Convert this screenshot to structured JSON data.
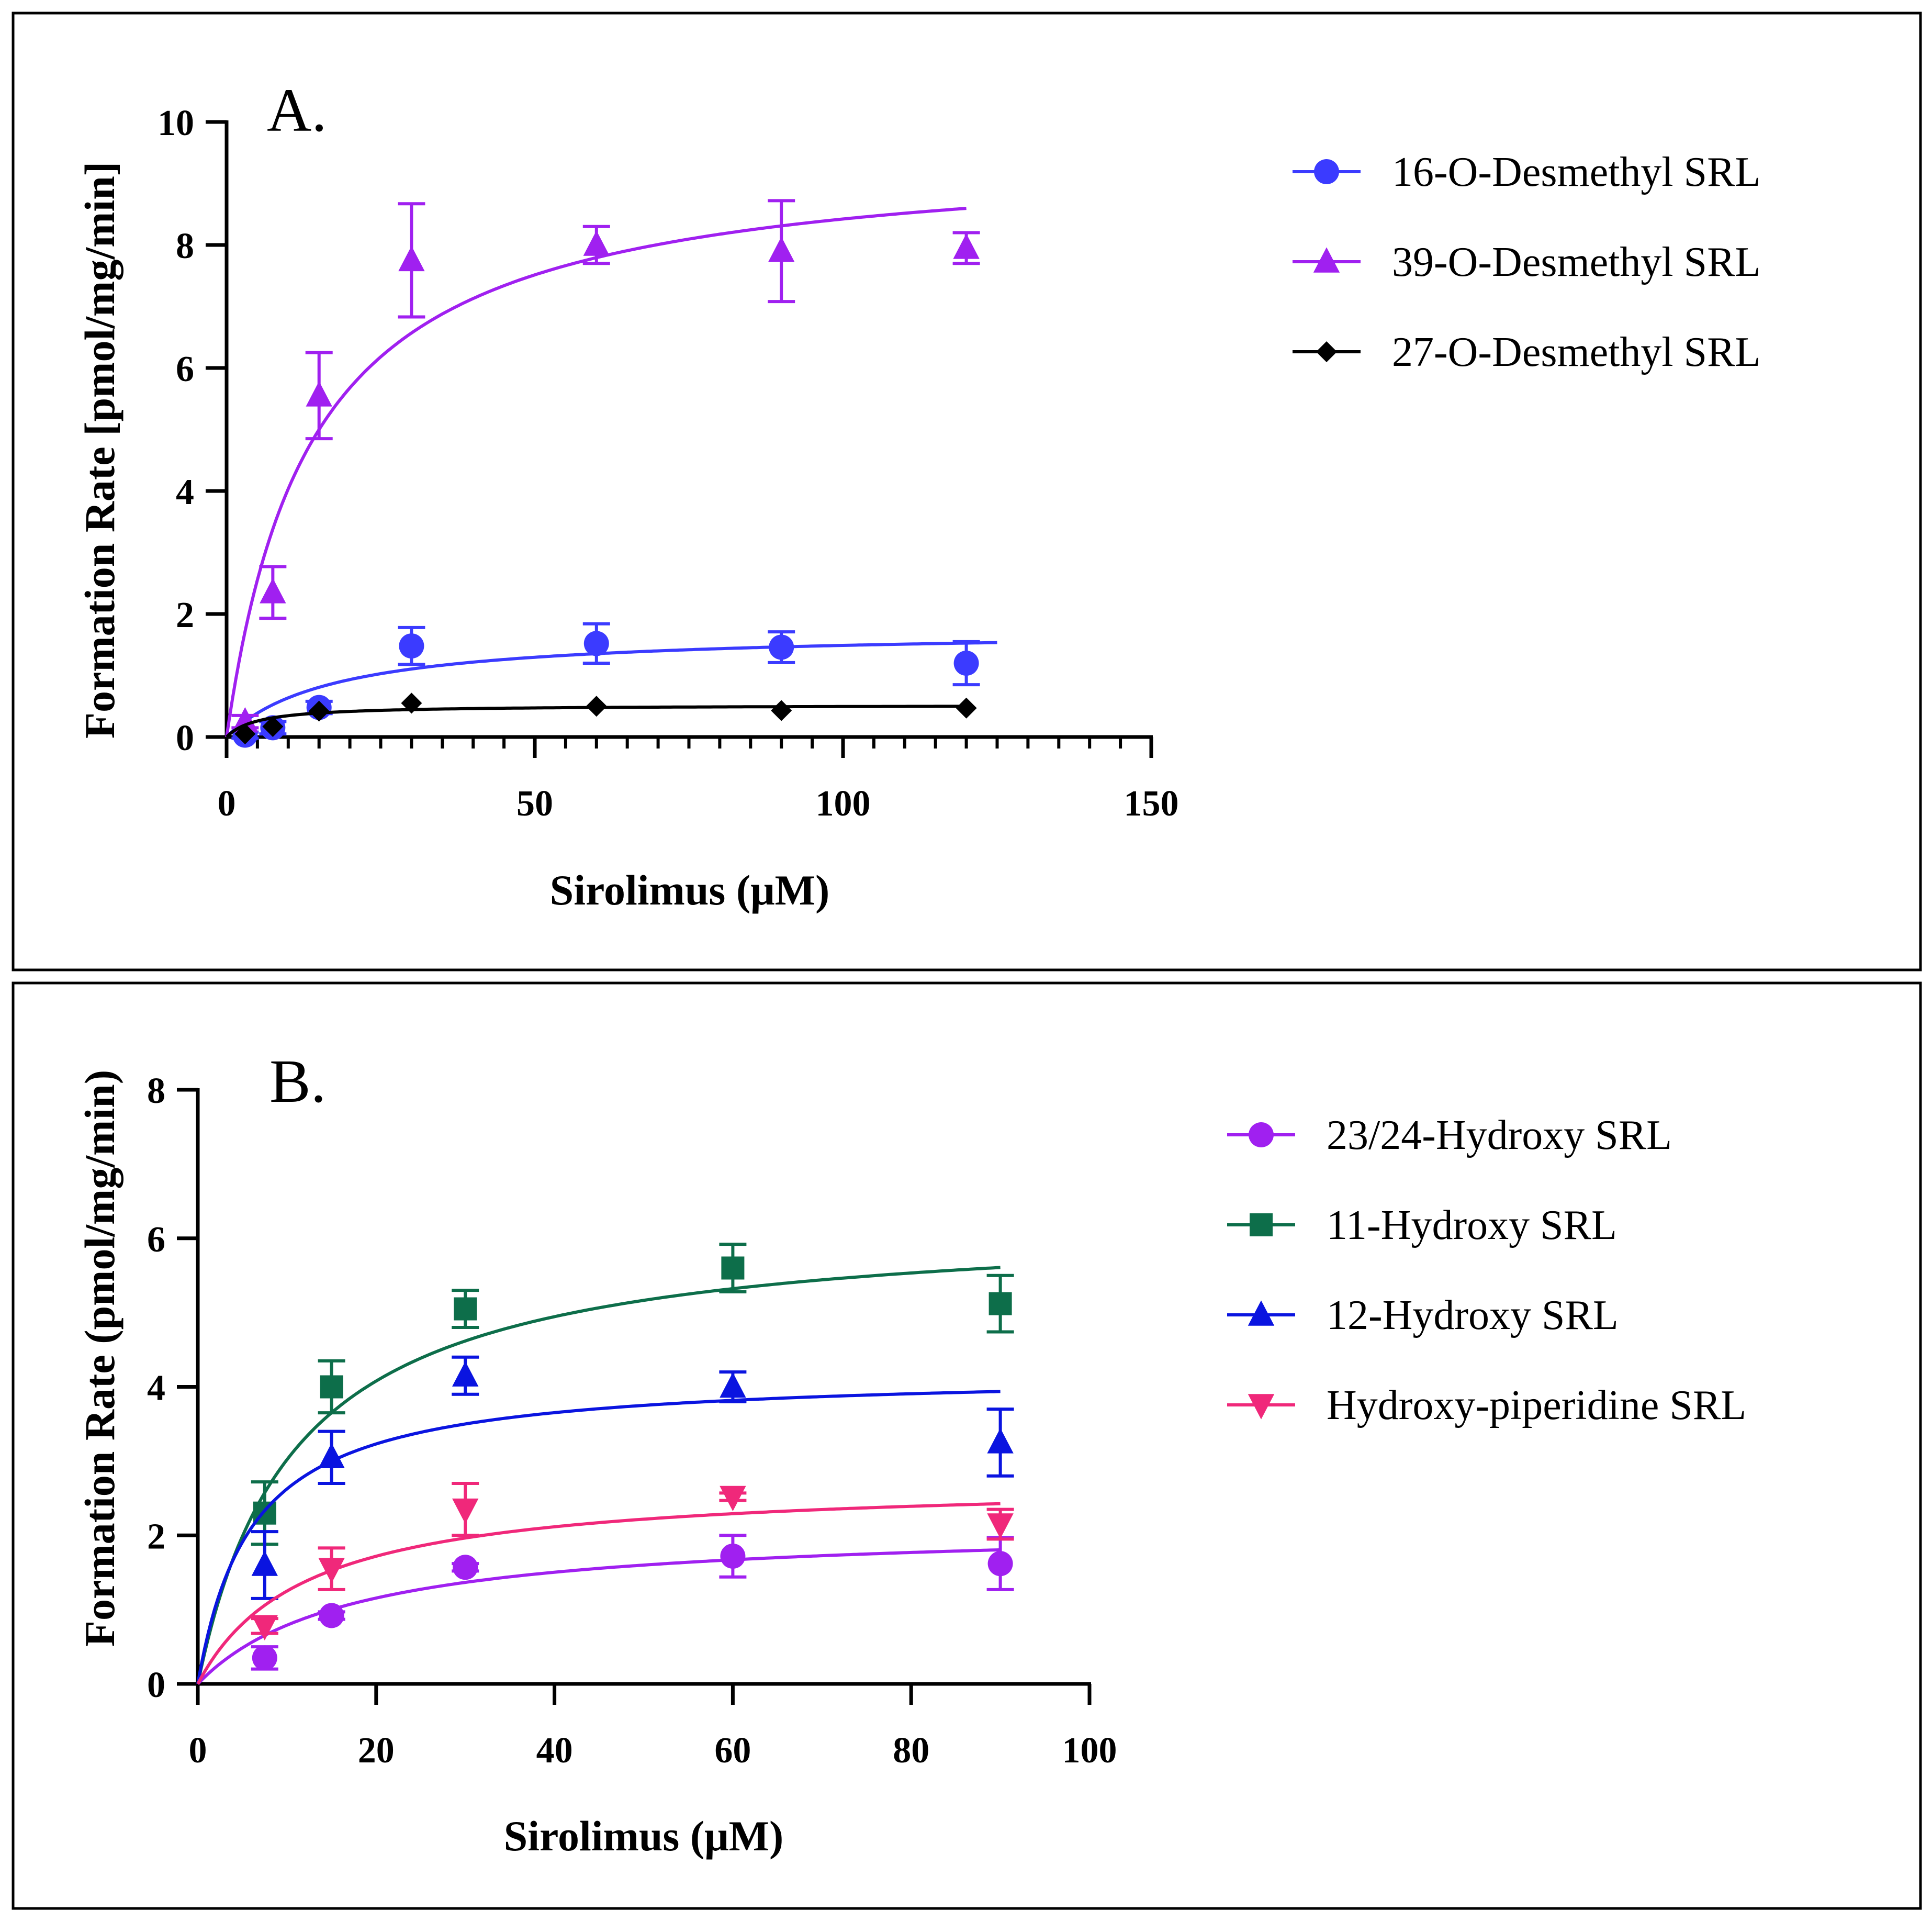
{
  "chart_data": [
    {
      "type": "scatter",
      "panel_label": "A.",
      "xlabel": "Sirolimus (μM)",
      "ylabel": "Formation Rate [pmol/mg/min]",
      "xlim": [
        0,
        150
      ],
      "ylim": [
        0,
        10
      ],
      "xticks": [
        0,
        50,
        100,
        150
      ],
      "xtick_labels": [
        "0",
        "50",
        "100",
        "150"
      ],
      "x_minor_step": 5,
      "yticks": [
        0,
        2,
        4,
        6,
        8,
        10
      ],
      "ytick_labels": [
        "0",
        "2",
        "4",
        "6",
        "8",
        "10"
      ],
      "grid": false,
      "legend_position": "top-right",
      "fit_curve": "michaelis-menten",
      "series": [
        {
          "name": "16-O-Desmethyl SRL",
          "color": "#3b3bff",
          "marker": "circle",
          "x": [
            3,
            7.5,
            15,
            30,
            60,
            90,
            120
          ],
          "y": [
            0.03,
            0.15,
            0.48,
            1.48,
            1.52,
            1.46,
            1.2
          ],
          "err": [
            0.05,
            0.1,
            0.1,
            0.3,
            0.32,
            0.25,
            0.35
          ],
          "fit": {
            "vmax": 1.75,
            "km": 17.5,
            "x_end": 125
          }
        },
        {
          "name": "39-O-Desmethyl SRL",
          "color": "#a020f0",
          "marker": "triangle-up",
          "x": [
            3,
            7.5,
            15,
            30,
            60,
            90,
            120
          ],
          "y": [
            0.25,
            2.35,
            5.55,
            7.75,
            8.0,
            7.9,
            7.95
          ],
          "err": [
            0.1,
            0.42,
            0.7,
            0.92,
            0.3,
            0.82,
            0.25
          ],
          "fit": {
            "vmax": 9.58,
            "km": 13.75,
            "x_end": 120
          }
        },
        {
          "name": "27-O-Desmethyl SRL",
          "color": "#000000",
          "marker": "diamond",
          "x": [
            3,
            7.5,
            15,
            30,
            60,
            90,
            120
          ],
          "y": [
            0.05,
            0.17,
            0.42,
            0.55,
            0.5,
            0.43,
            0.47
          ],
          "err": [
            0,
            0,
            0,
            0,
            0,
            0,
            0
          ],
          "fit": {
            "vmax": 0.52,
            "km": 5.0,
            "x_end": 120
          }
        }
      ]
    },
    {
      "type": "scatter",
      "panel_label": "B.",
      "xlabel": "Sirolimus (μM)",
      "ylabel": "Formation Rate (pmol/mg/min)",
      "xlim": [
        0,
        100
      ],
      "ylim": [
        0,
        8
      ],
      "xticks": [
        0,
        20,
        40,
        60,
        80,
        100
      ],
      "xtick_labels": [
        "0",
        "20",
        "40",
        "60",
        "80",
        "100"
      ],
      "x_minor_step": 0,
      "yticks": [
        0,
        2,
        4,
        6,
        8
      ],
      "ytick_labels": [
        "0",
        "2",
        "4",
        "6",
        "8"
      ],
      "grid": false,
      "legend_position": "top-right",
      "fit_curve": "michaelis-menten",
      "series": [
        {
          "name": "23/24-Hydroxy SRL",
          "color": "#a020f0",
          "marker": "circle",
          "x": [
            7.5,
            15,
            30,
            60,
            90
          ],
          "y": [
            0.35,
            0.92,
            1.57,
            1.72,
            1.62
          ],
          "err": [
            0.15,
            0.05,
            0.05,
            0.28,
            0.35
          ],
          "fit": {
            "vmax": 2.15,
            "km": 17.2,
            "x_end": 90
          }
        },
        {
          "name": "11-Hydroxy SRL",
          "color": "#0d6e4a",
          "marker": "square",
          "x": [
            7.5,
            15,
            30,
            60,
            90
          ],
          "y": [
            2.3,
            4.0,
            5.05,
            5.6,
            5.12
          ],
          "err": [
            0.42,
            0.35,
            0.25,
            0.32,
            0.38
          ],
          "fit": {
            "vmax": 6.28,
            "km": 10.8,
            "x_end": 90
          }
        },
        {
          "name": "12-Hydroxy SRL",
          "color": "#0a14e0",
          "marker": "triangle-up",
          "x": [
            7.5,
            15,
            30,
            60,
            90
          ],
          "y": [
            1.6,
            3.05,
            4.15,
            4.0,
            3.25
          ],
          "err": [
            0.45,
            0.35,
            0.25,
            0.2,
            0.45
          ],
          "fit": {
            "vmax": 4.2,
            "km": 6.0,
            "x_end": 90
          }
        },
        {
          "name": "Hydroxy-piperidine SRL",
          "color": "#f0287a",
          "marker": "triangle-down",
          "x": [
            7.5,
            15,
            30,
            60,
            90
          ],
          "y": [
            0.78,
            1.55,
            2.35,
            2.52,
            2.15
          ],
          "err": [
            0.1,
            0.28,
            0.35,
            0.05,
            0.2
          ],
          "fit": {
            "vmax": 2.75,
            "km": 12.0,
            "x_end": 90
          }
        }
      ]
    }
  ]
}
